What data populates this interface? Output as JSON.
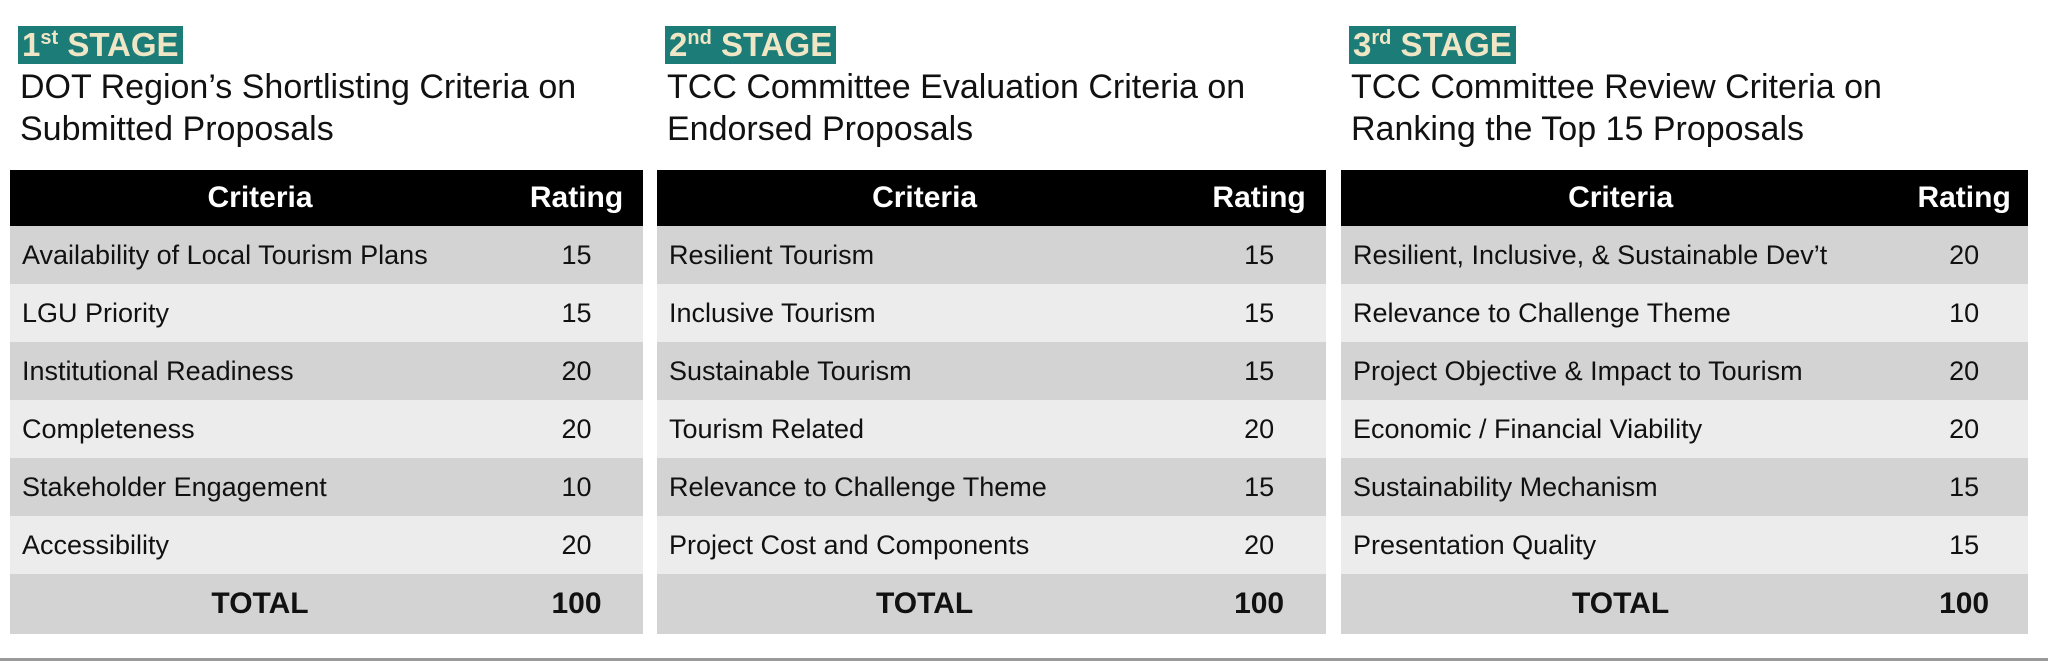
{
  "stages": [
    {
      "number": "1",
      "suffix": "st",
      "word": "STAGE",
      "title_lines": [
        "DOT Region’s Shortlisting Criteria on",
        "Submitted Proposals"
      ],
      "header": [
        "Criteria",
        "Rating"
      ],
      "rows": [
        [
          "Availability of Local Tourism Plans",
          15
        ],
        [
          "LGU Priority",
          15
        ],
        [
          "Institutional Readiness",
          20
        ],
        [
          "Completeness",
          20
        ],
        [
          "Stakeholder Engagement",
          10
        ],
        [
          "Accessibility",
          20
        ]
      ],
      "total": [
        "TOTAL",
        100
      ]
    },
    {
      "number": "2",
      "suffix": "nd",
      "word": "STAGE",
      "title_lines": [
        "TCC Committee Evaluation Criteria on",
        "Endorsed Proposals"
      ],
      "header": [
        "Criteria",
        "Rating"
      ],
      "rows": [
        [
          "Resilient Tourism",
          15
        ],
        [
          "Inclusive Tourism",
          15
        ],
        [
          "Sustainable Tourism",
          15
        ],
        [
          "Tourism Related",
          20
        ],
        [
          "Relevance to Challenge Theme",
          15
        ],
        [
          "Project Cost and Components",
          20
        ]
      ],
      "total": [
        "TOTAL",
        100
      ]
    },
    {
      "number": "3",
      "suffix": "rd",
      "word": "STAGE",
      "title_lines": [
        "TCC Committee Review Criteria on",
        "Ranking the Top 15 Proposals"
      ],
      "header": [
        "Criteria",
        "Rating"
      ],
      "rows": [
        [
          "Resilient, Inclusive, & Sustainable Dev’t",
          20
        ],
        [
          "Relevance to Challenge Theme",
          10
        ],
        [
          "Project Objective & Impact to Tourism",
          20
        ],
        [
          "Economic / Financial Viability",
          20
        ],
        [
          "Sustainability Mechanism",
          15
        ],
        [
          "Presentation Quality",
          15
        ]
      ],
      "total": [
        "TOTAL",
        100
      ]
    }
  ]
}
